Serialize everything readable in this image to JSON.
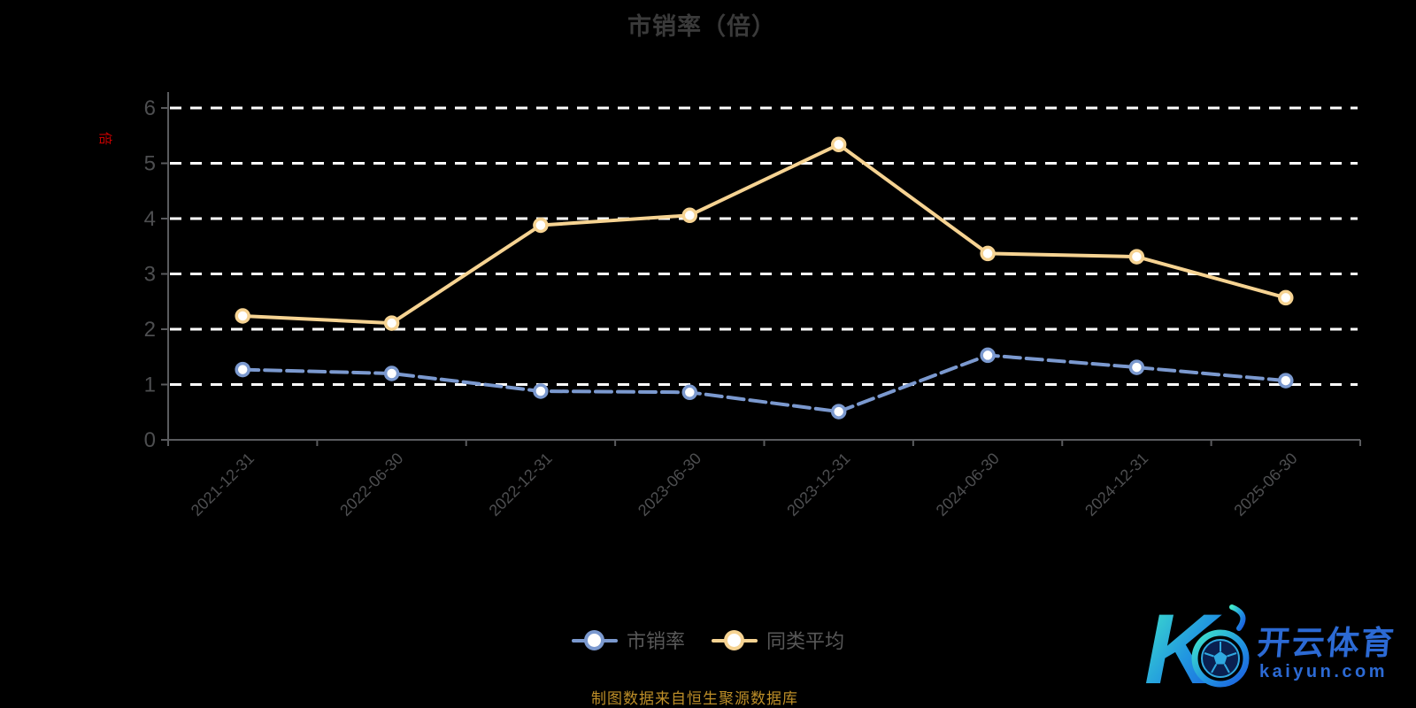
{
  "title": "市销率（倍）",
  "y_axis_name": "倍",
  "footer": "制图数据来自恒生聚源数据库",
  "legend": [
    {
      "label": "市销率",
      "color": "#7b99cf"
    },
    {
      "label": "同类平均",
      "color": "#f6d392"
    }
  ],
  "logo": {
    "monogram": "K",
    "brand": "开云体育",
    "domain": "kaiyun.com"
  },
  "colors": {
    "background": "#000000",
    "title": "#3a3a3a",
    "axis": "#5a5b5e",
    "tick_label": "#4d4e50",
    "grid": "#ffffff",
    "unit_label": "#c40000",
    "footer": "#bd8e28",
    "marker_fill": "#ffffff",
    "logo_blue": "#2c6ad4",
    "logo_gradient_start": "#41e8c9",
    "logo_gradient_end": "#1b5ce0"
  },
  "chart_data": {
    "type": "line",
    "title": "市销率（倍）",
    "categories": [
      "2021-12-31",
      "2022-06-30",
      "2022-12-31",
      "2023-06-30",
      "2023-12-31",
      "2024-06-30",
      "2024-12-31",
      "2025-06-30"
    ],
    "series": [
      {
        "name": "市销率",
        "color": "#7b99cf",
        "line_style": "dashed",
        "values": [
          1.27,
          1.2,
          0.88,
          0.86,
          0.51,
          1.53,
          1.31,
          1.07
        ]
      },
      {
        "name": "同类平均",
        "color": "#f6d392",
        "line_style": "solid",
        "values": [
          2.24,
          2.11,
          3.88,
          4.06,
          5.34,
          3.37,
          3.31,
          2.57
        ]
      }
    ],
    "xlabel": "",
    "ylabel": "倍",
    "ylim": [
      0,
      6
    ],
    "y_ticks": [
      0,
      1,
      2,
      3,
      4,
      5,
      6
    ],
    "grid": "horizontal white dashed lines at integer values",
    "legend_position": "bottom center",
    "x_label_rotation": 45
  }
}
